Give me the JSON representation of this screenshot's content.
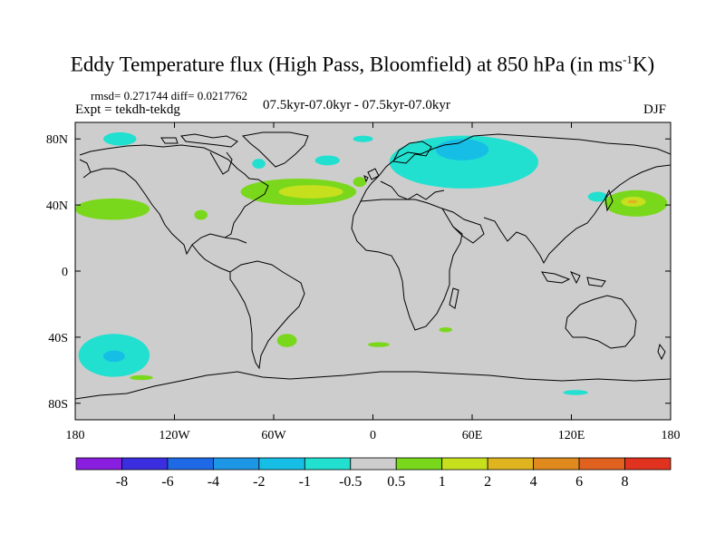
{
  "header": {
    "title": "Eddy Temperature flux (High Pass, Bloomfield) at 850 hPa (in ms",
    "title_sup": "-1",
    "title_end": "K)",
    "stats": "rmsd= 0.271744 diff= 0.0217762",
    "expt": "Expt = tekdh-tekdg",
    "period": "07.5kyr-07.0kyr - 07.5kyr-07.0kyr",
    "season": "DJF"
  },
  "chart_data": {
    "type": "heatmap",
    "title": "Eddy Temperature flux (High Pass, Bloomfield) at 850 hPa (in ms-1K)",
    "projection": "cylindrical equidistant",
    "xlim": [
      -180,
      180
    ],
    "ylim": [
      -90,
      90
    ],
    "x_ticks": [
      {
        "value": -180,
        "label": "180"
      },
      {
        "value": -120,
        "label": "120W"
      },
      {
        "value": -60,
        "label": "60W"
      },
      {
        "value": 0,
        "label": "0"
      },
      {
        "value": 60,
        "label": "60E"
      },
      {
        "value": 120,
        "label": "120E"
      },
      {
        "value": 180,
        "label": "180"
      }
    ],
    "y_ticks": [
      {
        "value": 80,
        "label": "80N"
      },
      {
        "value": 40,
        "label": "40N"
      },
      {
        "value": 0,
        "label": "0"
      },
      {
        "value": -40,
        "label": "40S"
      },
      {
        "value": -80,
        "label": "80S"
      }
    ],
    "background_color": "#cdcdcd",
    "colorbar": {
      "levels": [
        "-8",
        "-6",
        "-4",
        "-2",
        "-1",
        "-0.5",
        "0.5",
        "1",
        "2",
        "4",
        "6",
        "8"
      ],
      "colors": [
        "#8a1ee0",
        "#3a2ee0",
        "#1e6ae6",
        "#1e96e6",
        "#16bee6",
        "#22e0d0",
        "#cdcdcd",
        "#7ad81c",
        "#c6e01e",
        "#e0b41e",
        "#e08a1e",
        "#e0621e",
        "#e0321e"
      ]
    },
    "regions": [
      {
        "bin": "-1..-0.5",
        "color": "#22e0d0",
        "lon": [
          -163,
          -143
        ],
        "lat": [
          76,
          84
        ]
      },
      {
        "bin": "-1..-0.5",
        "color": "#22e0d0",
        "lon": [
          -73,
          -65
        ],
        "lat": [
          62,
          68
        ]
      },
      {
        "bin": "-1..-0.5",
        "color": "#22e0d0",
        "lon": [
          -35,
          -20
        ],
        "lat": [
          64,
          70
        ]
      },
      {
        "bin": "-1..-0.5",
        "color": "#22e0d0",
        "lon": [
          -12,
          0
        ],
        "lat": [
          78,
          82
        ]
      },
      {
        "bin": "-1..-0.5",
        "color": "#22e0d0",
        "lon": [
          10,
          100
        ],
        "lat": [
          50,
          82
        ]
      },
      {
        "bin": "-2..-1",
        "color": "#16bee6",
        "lon": [
          38,
          70
        ],
        "lat": [
          67,
          80
        ]
      },
      {
        "bin": "-1..-0.5",
        "color": "#22e0d0",
        "lon": [
          130,
          142
        ],
        "lat": [
          42,
          48
        ]
      },
      {
        "bin": "-1..-0.5",
        "color": "#22e0d0",
        "lon": [
          -178,
          -135
        ],
        "lat": [
          -64,
          -38
        ]
      },
      {
        "bin": "-2..-1",
        "color": "#16bee6",
        "lon": [
          -163,
          -150
        ],
        "lat": [
          -55,
          -48
        ]
      },
      {
        "bin": "-1..-0.5",
        "color": "#22e0d0",
        "lon": [
          115,
          130
        ],
        "lat": [
          -75,
          -72
        ]
      },
      {
        "bin": "0.5..1",
        "color": "#7ad81c",
        "lon": [
          -180,
          -135
        ],
        "lat": [
          31,
          44
        ]
      },
      {
        "bin": "0.5..1",
        "color": "#7ad81c",
        "lon": [
          -108,
          -100
        ],
        "lat": [
          31,
          37
        ]
      },
      {
        "bin": "0.5..1",
        "color": "#7ad81c",
        "lon": [
          -80,
          -10
        ],
        "lat": [
          40,
          56
        ]
      },
      {
        "bin": "1..2",
        "color": "#c6e01e",
        "lon": [
          -57,
          -18
        ],
        "lat": [
          44,
          52
        ]
      },
      {
        "bin": "0.5..1",
        "color": "#7ad81c",
        "lon": [
          -12,
          -4
        ],
        "lat": [
          51,
          57
        ]
      },
      {
        "bin": "0.5..1",
        "color": "#7ad81c",
        "lon": [
          140,
          178
        ],
        "lat": [
          33,
          49
        ]
      },
      {
        "bin": "1..2",
        "color": "#c6e01e",
        "lon": [
          150,
          165
        ],
        "lat": [
          39,
          45
        ]
      },
      {
        "bin": "2..4",
        "color": "#e0b41e",
        "lon": [
          154,
          160
        ],
        "lat": [
          41,
          43
        ]
      },
      {
        "bin": "0.5..1",
        "color": "#7ad81c",
        "lon": [
          -58,
          -46
        ],
        "lat": [
          -46,
          -38
        ]
      },
      {
        "bin": "0.5..1",
        "color": "#7ad81c",
        "lon": [
          -3,
          10
        ],
        "lat": [
          -46,
          -43
        ]
      },
      {
        "bin": "0.5..1",
        "color": "#7ad81c",
        "lon": [
          40,
          48
        ],
        "lat": [
          -37,
          -34
        ]
      },
      {
        "bin": "0.5..1",
        "color": "#7ad81c",
        "lon": [
          -147,
          -133
        ],
        "lat": [
          -66,
          -63
        ]
      }
    ]
  }
}
